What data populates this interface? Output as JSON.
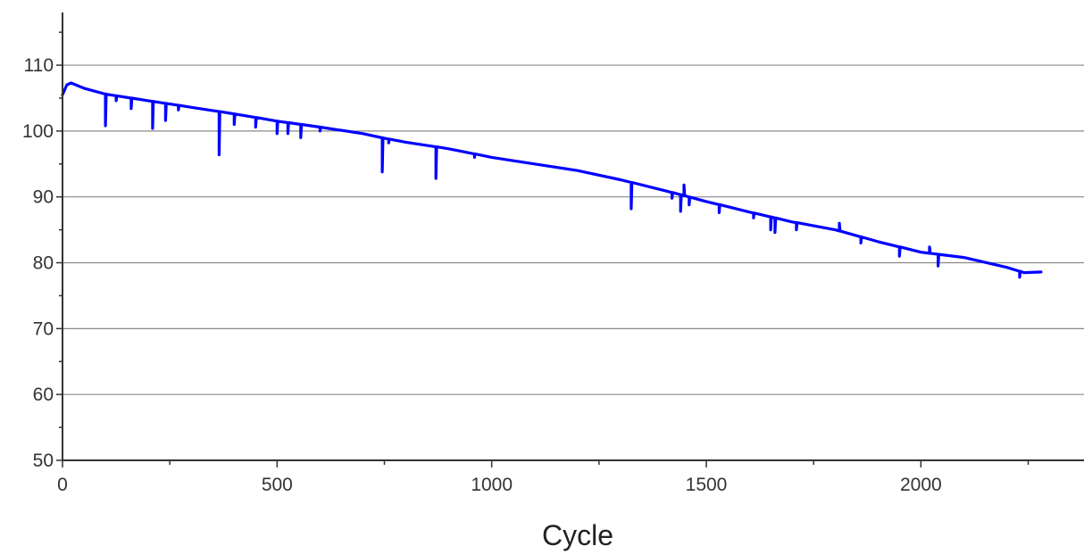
{
  "chart_data": {
    "type": "line",
    "title": "",
    "xlabel": "Cycle",
    "ylabel": "",
    "xlim": [
      0,
      2380
    ],
    "ylim": [
      50,
      118
    ],
    "x_ticks": [
      0,
      500,
      1000,
      1500,
      2000
    ],
    "x_tick_labels": [
      "0",
      "500",
      "1000",
      "1500",
      "2000"
    ],
    "y_ticks": [
      50,
      60,
      70,
      80,
      90,
      100,
      110
    ],
    "y_tick_labels": [
      "50",
      "60",
      "70",
      "80",
      "90",
      "100",
      "110"
    ],
    "grid": "horizontal",
    "series": [
      {
        "color": "#0000ff",
        "trend": [
          [
            0,
            105.5
          ],
          [
            10,
            107.0
          ],
          [
            20,
            107.3
          ],
          [
            50,
            106.5
          ],
          [
            100,
            105.6
          ],
          [
            200,
            104.6
          ],
          [
            300,
            103.6
          ],
          [
            400,
            102.6
          ],
          [
            500,
            101.5
          ],
          [
            600,
            100.6
          ],
          [
            700,
            99.6
          ],
          [
            750,
            98.9
          ],
          [
            800,
            98.3
          ],
          [
            900,
            97.3
          ],
          [
            1000,
            96.0
          ],
          [
            1100,
            95.0
          ],
          [
            1200,
            94.0
          ],
          [
            1300,
            92.6
          ],
          [
            1400,
            91.0
          ],
          [
            1500,
            89.3
          ],
          [
            1600,
            87.7
          ],
          [
            1700,
            86.2
          ],
          [
            1800,
            85.0
          ],
          [
            1900,
            83.2
          ],
          [
            2000,
            81.6
          ],
          [
            2100,
            80.8
          ],
          [
            2200,
            79.3
          ],
          [
            2240,
            78.5
          ],
          [
            2280,
            78.6
          ]
        ],
        "drops": [
          [
            100,
            100.8
          ],
          [
            125,
            104.6
          ],
          [
            160,
            103.4
          ],
          [
            210,
            100.4
          ],
          [
            240,
            101.6
          ],
          [
            270,
            103.2
          ],
          [
            365,
            96.4
          ],
          [
            400,
            101.0
          ],
          [
            450,
            100.6
          ],
          [
            500,
            99.6
          ],
          [
            525,
            99.6
          ],
          [
            555,
            99.0
          ],
          [
            600,
            100.0
          ],
          [
            745,
            93.8
          ],
          [
            760,
            98.2
          ],
          [
            870,
            92.8
          ],
          [
            960,
            96.0
          ],
          [
            1325,
            88.2
          ],
          [
            1420,
            89.8
          ],
          [
            1440,
            87.8
          ],
          [
            1460,
            88.8
          ],
          [
            1530,
            87.6
          ],
          [
            1610,
            86.8
          ],
          [
            1650,
            85.0
          ],
          [
            1660,
            84.6
          ],
          [
            1710,
            85.0
          ],
          [
            1860,
            83.0
          ],
          [
            1950,
            81.0
          ],
          [
            2040,
            79.5
          ],
          [
            2230,
            77.8
          ]
        ],
        "spikes": [
          [
            1448,
            91.8
          ],
          [
            1810,
            86.0
          ],
          [
            2020,
            82.4
          ]
        ]
      }
    ]
  }
}
